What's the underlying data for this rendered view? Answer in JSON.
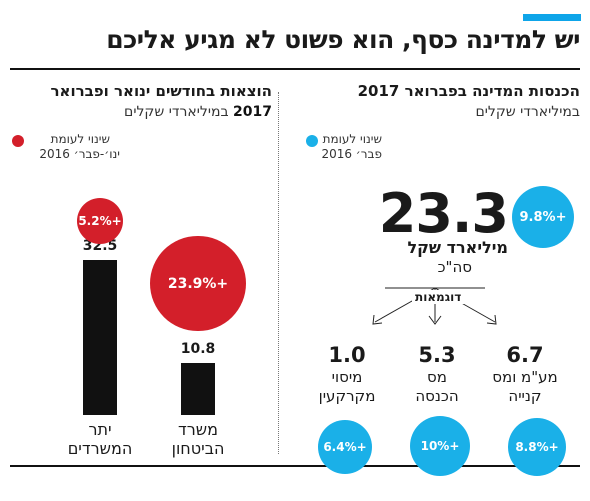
{
  "headline": "יש למדינה כסף, הוא פשוט לא מגיע אליכם",
  "colors": {
    "accent": "#0ea5e9",
    "income": "#1ab0e8",
    "expense": "#d31f2a",
    "bar": "#111111"
  },
  "income_panel": {
    "title": "הכנסות המדינה בפברואר 2017",
    "subtitle": "במיליארדי שקלים",
    "legend": {
      "label": "שינוי לעומת",
      "period": "פבר׳ 2016"
    },
    "total": {
      "value": "23.3",
      "unit": "מיליארד שקל",
      "caption": "סה\"כ",
      "change": "+9.8%"
    },
    "examples_label": "דוגמאות",
    "examples": [
      {
        "value": "6.7",
        "label_line1": "מע\"מ ומס",
        "label_line2": "קנייה",
        "change": "+8.8%"
      },
      {
        "value": "5.3",
        "label_line1": "מס",
        "label_line2": "הכנסה",
        "change": "+10%"
      },
      {
        "value": "1.0",
        "label_line1": "מיסוי",
        "label_line2": "מקרקעין",
        "change": "+6.4%"
      }
    ]
  },
  "expense_panel": {
    "title": "הוצאות בחודשים ינואר ופברואר",
    "subtitle_year": "2017",
    "subtitle": "במיליארדי שקלים",
    "legend": {
      "label": "שינוי לעומת",
      "period": "ינו׳-פבר׳ 2016"
    },
    "bars": [
      {
        "category": "משרד הביטחון",
        "label_line1": "משרד",
        "label_line2": "הביטחון",
        "value": 10.8,
        "value_label": "10.8",
        "change": "+23.9%",
        "change_pct": 23.9
      },
      {
        "category": "יתר המשרדים",
        "label_line1": "יתר",
        "label_line2": "המשרדים",
        "value": 32.5,
        "value_label": "32.5",
        "change": "+5.2%",
        "change_pct": 5.2
      }
    ]
  },
  "chart_data": [
    {
      "type": "bar",
      "title": "הכנסות המדינה בפברואר 2017",
      "ylabel": "במיליארדי שקלים",
      "categories": [
        "סה\"כ",
        "מע\"מ ומס קנייה",
        "מס הכנסה",
        "מיסוי מקרקעין"
      ],
      "series": [
        {
          "name": "מיליארד שקל",
          "values": [
            23.3,
            6.7,
            5.3,
            1.0
          ]
        },
        {
          "name": "שינוי לעומת פבר׳ 2016",
          "values": [
            9.8,
            8.8,
            10,
            6.4
          ]
        }
      ]
    },
    {
      "type": "bar",
      "title": "הוצאות בחודשים ינואר ופברואר 2017",
      "ylabel": "במיליארדי שקלים",
      "categories": [
        "משרד הביטחון",
        "יתר המשרדים"
      ],
      "series": [
        {
          "name": "מיליארד שקל",
          "values": [
            10.8,
            32.5
          ]
        },
        {
          "name": "שינוי לעומת ינו׳-פבר׳ 2016",
          "values": [
            23.9,
            5.2
          ]
        }
      ]
    }
  ]
}
